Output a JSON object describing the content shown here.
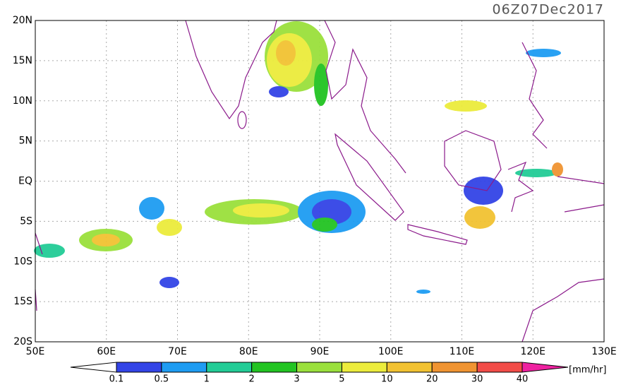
{
  "title": "06Z07Dec2017",
  "lat_labels": [
    "20N",
    "15N",
    "10N",
    "5N",
    "EQ",
    "5S",
    "10S",
    "15S",
    "20S"
  ],
  "lon_labels": [
    "50E",
    "60E",
    "70E",
    "80E",
    "90E",
    "100E",
    "110E",
    "120E",
    "130E"
  ],
  "colorbar": {
    "labels": [
      "0.1",
      "0.5",
      "1",
      "2",
      "3",
      "5",
      "10",
      "20",
      "30",
      "40"
    ],
    "colors": [
      "#ffffff",
      "#3344e6",
      "#1e9cf2",
      "#22cc96",
      "#22c422",
      "#9ae03c",
      "#ecec3c",
      "#f2c232",
      "#f09432",
      "#f24c48",
      "#ee22a0"
    ],
    "unit": "[mm/hr]"
  }
}
